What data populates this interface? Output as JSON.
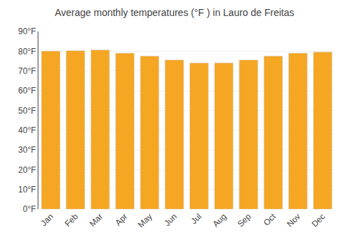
{
  "chart_data": {
    "type": "bar",
    "title": "Average monthly temperatures (°F ) in Lauro de Freitas",
    "categories": [
      "Jan",
      "Feb",
      "Mar",
      "Apr",
      "May",
      "Jun",
      "Jul",
      "Aug",
      "Sep",
      "Oct",
      "Nov",
      "Dec"
    ],
    "values": [
      80.0,
      80.2,
      80.6,
      79.0,
      77.5,
      75.5,
      74.0,
      74.0,
      75.5,
      77.5,
      79.0,
      79.5
    ],
    "color": "#F5A623",
    "ylim": [
      0,
      90
    ],
    "yticks": [
      {
        "value": 0,
        "label": "0°F"
      },
      {
        "value": 10,
        "label": "10°F"
      },
      {
        "value": 20,
        "label": "20°F"
      },
      {
        "value": 30,
        "label": "30°F"
      },
      {
        "value": 40,
        "label": "40°F"
      },
      {
        "value": 50,
        "label": "50°F"
      },
      {
        "value": 60,
        "label": "60°F"
      },
      {
        "value": 70,
        "label": "70°F"
      },
      {
        "value": 80,
        "label": "80°F"
      },
      {
        "value": 90,
        "label": "90°F"
      }
    ],
    "grid": true
  }
}
